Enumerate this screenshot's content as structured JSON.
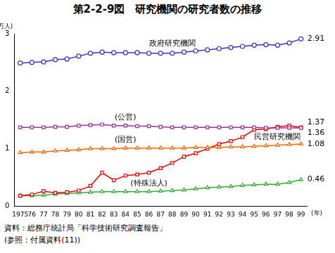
{
  "chart_data": {
    "type": "line",
    "title": "第2-2-9図　研究機関の研究者数の推移",
    "y_label": "(万人)",
    "x_label": "(年)",
    "categories": [
      "1975",
      "76",
      "77",
      "78",
      "79",
      "80",
      "81",
      "82",
      "83",
      "84",
      "85",
      "86",
      "87",
      "88",
      "89",
      "90",
      "91",
      "92",
      "93",
      "94",
      "95",
      "96",
      "97",
      "98",
      "99"
    ],
    "series": [
      {
        "name": "政府研究機関",
        "color": "#3333cc",
        "marker": "circle",
        "values": [
          2.49,
          2.5,
          2.51,
          2.55,
          2.56,
          2.61,
          2.66,
          2.68,
          2.67,
          2.67,
          2.67,
          2.66,
          2.66,
          2.66,
          2.68,
          2.7,
          2.72,
          2.74,
          2.76,
          2.78,
          2.8,
          2.81,
          2.8,
          2.84,
          2.91
        ]
      },
      {
        "name": "(公営)",
        "color": "#993399",
        "marker": "square",
        "values": [
          1.37,
          1.37,
          1.37,
          1.38,
          1.38,
          1.4,
          1.41,
          1.42,
          1.4,
          1.4,
          1.39,
          1.39,
          1.38,
          1.37,
          1.37,
          1.37,
          1.37,
          1.37,
          1.37,
          1.37,
          1.37,
          1.36,
          1.36,
          1.36,
          1.36
        ]
      },
      {
        "name": "(国営)",
        "color": "#ff6600",
        "marker": "triangle",
        "values": [
          0.93,
          0.94,
          0.94,
          0.96,
          0.97,
          0.98,
          1.0,
          1.0,
          1.0,
          1.01,
          1.01,
          1.01,
          1.01,
          1.01,
          1.01,
          1.02,
          1.02,
          1.02,
          1.03,
          1.03,
          1.04,
          1.05,
          1.06,
          1.07,
          1.08
        ]
      },
      {
        "name": "民営研究機関",
        "color": "#ee0000",
        "marker": "square",
        "values": [
          0.18,
          0.2,
          0.26,
          0.23,
          0.24,
          0.27,
          0.35,
          0.58,
          0.45,
          0.53,
          0.55,
          0.58,
          0.66,
          0.75,
          0.86,
          0.92,
          1.0,
          1.08,
          1.13,
          1.2,
          1.33,
          1.34,
          1.38,
          1.4,
          1.37
        ]
      },
      {
        "name": "(特殊法人)",
        "color": "#33aa33",
        "marker": "triangle",
        "values": [
          0.18,
          0.18,
          0.19,
          0.21,
          0.22,
          0.23,
          0.24,
          0.25,
          0.25,
          0.25,
          0.25,
          0.25,
          0.26,
          0.27,
          0.28,
          0.3,
          0.32,
          0.33,
          0.34,
          0.36,
          0.37,
          0.38,
          0.38,
          0.41,
          0.46
        ]
      }
    ],
    "ylim": [
      0,
      3
    ],
    "yticks": [
      0,
      1,
      2,
      3
    ],
    "grid": false,
    "notes": [
      "資料：総務庁統計局「科学技術研究調査報告」",
      "(参照：付属資料(11))"
    ]
  }
}
